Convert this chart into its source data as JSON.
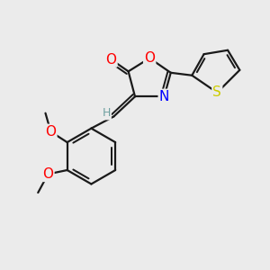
{
  "bg_color": "#ebebeb",
  "atom_colors": {
    "C": "#000000",
    "H": "#6fa0a0",
    "N": "#0000ff",
    "O": "#ff0000",
    "S": "#cccc00"
  },
  "bond_color": "#1a1a1a",
  "bond_width": 1.6,
  "font_size_atoms": 11,
  "font_size_small": 9,
  "font_size_methoxy": 9
}
